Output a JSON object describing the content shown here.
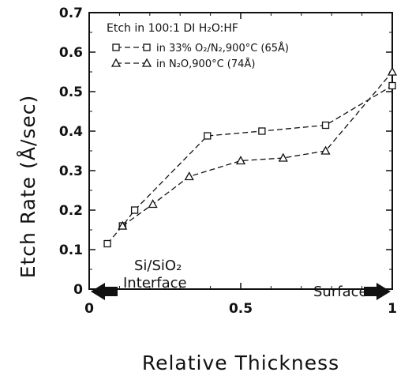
{
  "chart_data": {
    "type": "line",
    "title": "Etch in 100:1 DI H₂O:HF",
    "xlabel": "Relative Thickness",
    "ylabel": "Etch Rate (Å/sec)",
    "xlim": [
      0,
      1
    ],
    "ylim": [
      0,
      0.7
    ],
    "x_ticks": [
      "0",
      "0.5",
      "1"
    ],
    "y_ticks": [
      "0",
      "0.1",
      "0.2",
      "0.3",
      "0.4",
      "0.5",
      "0.6",
      "0.7"
    ],
    "grid": false,
    "legend_position": "top-left",
    "series": [
      {
        "name": "in 33% O₂/N₂,900°C (65Å)",
        "marker": "square",
        "x": [
          0.06,
          0.11,
          0.15,
          0.39,
          0.57,
          0.78,
          1.0
        ],
        "y": [
          0.115,
          0.16,
          0.2,
          0.388,
          0.4,
          0.415,
          0.515
        ]
      },
      {
        "name": "in N₂O,900°C (74Å)",
        "marker": "triangle",
        "x": [
          0.11,
          0.21,
          0.33,
          0.5,
          0.64,
          0.78,
          1.0
        ],
        "y": [
          0.16,
          0.215,
          0.285,
          0.325,
          0.332,
          0.35,
          0.55
        ]
      }
    ],
    "annotations": {
      "left_line1": "Si/SiO₂",
      "left_line2": "Interface",
      "right": "Surface"
    }
  }
}
